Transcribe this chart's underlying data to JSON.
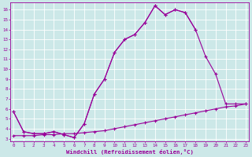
{
  "xlabel": "Windchill (Refroidissement éolien,°C)",
  "bg_color": "#cce8e8",
  "line_color": "#990099",
  "grid_color": "#ffffff",
  "xticks": [
    0,
    1,
    2,
    3,
    4,
    5,
    6,
    7,
    8,
    9,
    10,
    11,
    12,
    13,
    14,
    15,
    16,
    17,
    18,
    19,
    20,
    21,
    22,
    23
  ],
  "yticks": [
    3,
    4,
    5,
    6,
    7,
    8,
    9,
    10,
    11,
    12,
    13,
    14,
    15,
    16
  ],
  "s1_x": [
    0,
    1,
    2,
    3,
    4,
    5,
    6,
    7,
    8,
    9,
    10,
    11,
    12,
    13,
    14,
    15,
    16,
    17,
    18
  ],
  "s1_y": [
    5.7,
    3.7,
    3.5,
    3.5,
    3.7,
    3.4,
    3.1,
    4.5,
    7.5,
    9.0,
    11.7,
    13.0,
    13.5,
    14.7,
    16.4,
    15.5,
    16.0,
    15.7,
    14.0
  ],
  "s2_x": [
    0,
    1,
    2,
    3,
    4,
    5,
    6,
    7,
    8,
    9,
    10,
    11,
    12,
    13,
    14,
    15,
    16,
    17,
    18,
    19,
    20,
    21,
    22,
    23
  ],
  "s2_y": [
    5.7,
    3.7,
    3.5,
    3.5,
    3.7,
    3.4,
    3.1,
    4.5,
    7.5,
    9.0,
    11.7,
    13.0,
    13.5,
    14.7,
    16.4,
    15.5,
    16.0,
    15.7,
    14.0,
    11.3,
    9.5,
    6.5,
    6.5,
    6.5
  ],
  "s3_x": [
    0,
    1,
    2,
    3,
    4,
    5,
    6,
    7,
    8,
    9,
    10,
    11,
    12,
    13,
    14,
    15,
    16,
    17,
    18,
    19,
    20,
    21,
    22,
    23
  ],
  "s3_y": [
    3.3,
    3.3,
    3.3,
    3.4,
    3.4,
    3.5,
    3.5,
    3.6,
    3.7,
    3.8,
    4.0,
    4.2,
    4.4,
    4.6,
    4.8,
    5.0,
    5.2,
    5.4,
    5.6,
    5.8,
    6.0,
    6.2,
    6.3,
    6.5
  ]
}
